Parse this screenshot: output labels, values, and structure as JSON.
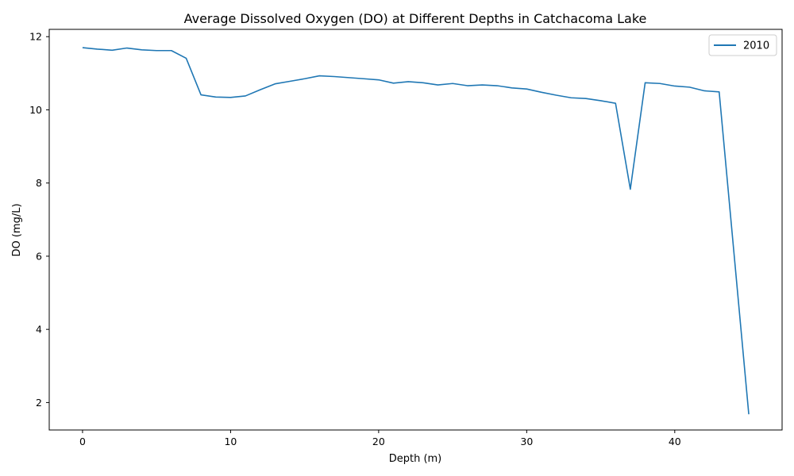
{
  "chart_data": {
    "type": "line",
    "title": "Average Dissolved Oxygen (DO) at Different Depths in Catchacoma Lake",
    "xlabel": "Depth (m)",
    "ylabel": "DO (mg/L)",
    "xlim": [
      -2.25,
      47.25
    ],
    "ylim": [
      1.25,
      12.2
    ],
    "xticks": [
      0,
      10,
      20,
      30,
      40
    ],
    "yticks": [
      2,
      4,
      6,
      8,
      10,
      12
    ],
    "grid": false,
    "legend_position": "top-right",
    "color": "#1f77b4",
    "series": [
      {
        "name": "2010",
        "x": [
          0,
          1,
          2,
          3,
          4,
          5,
          6,
          7,
          8,
          9,
          10,
          11,
          12,
          13,
          14,
          15,
          16,
          17,
          18,
          19,
          20,
          21,
          22,
          23,
          24,
          25,
          26,
          27,
          28,
          29,
          30,
          31,
          32,
          33,
          34,
          35,
          36,
          37,
          38,
          39,
          40,
          41,
          42,
          43,
          45
        ],
        "y": [
          11.7,
          11.66,
          11.63,
          11.69,
          11.64,
          11.62,
          11.62,
          11.41,
          10.41,
          10.35,
          10.34,
          10.38,
          10.55,
          10.71,
          10.78,
          10.85,
          10.93,
          10.91,
          10.88,
          10.85,
          10.82,
          10.73,
          10.77,
          10.74,
          10.68,
          10.72,
          10.66,
          10.68,
          10.66,
          10.6,
          10.57,
          10.48,
          10.4,
          10.33,
          10.31,
          10.25,
          10.18,
          7.83,
          10.74,
          10.72,
          10.65,
          10.62,
          10.52,
          10.49,
          1.68
        ]
      }
    ]
  }
}
